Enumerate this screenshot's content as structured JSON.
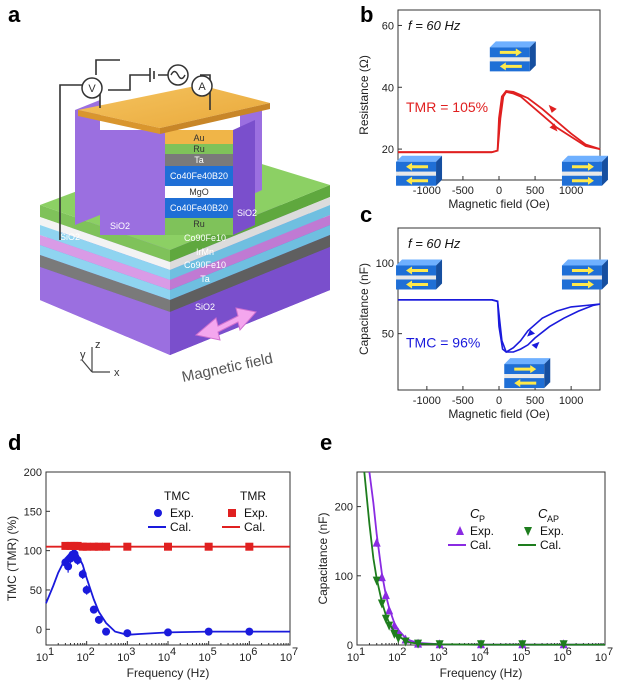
{
  "panel_labels": {
    "a": "a",
    "b": "b",
    "c": "c",
    "d": "d",
    "e": "e"
  },
  "device": {
    "layers": [
      "Au",
      "Ru",
      "Ta",
      "Co40Fe40B20",
      "MgO",
      "Co40Fe40B20",
      "Ru",
      "Co90Fe10",
      "IrMn",
      "Co90Fe10",
      "Ta",
      "SiO2"
    ],
    "side_labels": [
      "SiO2",
      "SiO2",
      "SiO2"
    ],
    "meters": [
      "V",
      "A"
    ],
    "axes": [
      "y",
      "z",
      "x"
    ],
    "field_label": "Magnetic field",
    "colors": {
      "purple": "#9b6fe0",
      "gold": "#f0b548",
      "green": "#7fc25a",
      "blue": "#1f6fd6",
      "cyan": "#8fd4f0",
      "gray": "#7a7a7a",
      "pink": "#d99be6"
    }
  },
  "chart_data": [
    {
      "id": "b",
      "type": "line",
      "freq_label": "f = 60 Hz",
      "annotation": "TMR = 105%",
      "xlabel": "Magnetic field (Oe)",
      "ylabel": "Resistance (Ω)",
      "xlim": [
        -1400,
        1400
      ],
      "ylim": [
        10,
        65
      ],
      "xticks": [
        -1000,
        -500,
        0,
        500,
        1000
      ],
      "xtick_labels": [
        "-1000",
        "-500",
        "0",
        "500",
        "1000"
      ],
      "yticks": [
        20,
        40,
        60
      ],
      "ytick_labels": [
        "20",
        "40",
        "60"
      ],
      "color": "#e02020",
      "series": [
        {
          "name": "up",
          "x": [
            -1400,
            -600,
            -100,
            -20,
            20,
            60,
            100,
            200,
            300,
            400,
            600,
            800,
            1000,
            1200,
            1400
          ],
          "y": [
            19,
            19,
            19,
            19.5,
            30,
            37,
            38.5,
            38,
            37,
            35,
            31,
            27,
            24,
            21,
            20
          ]
        },
        {
          "name": "down",
          "x": [
            1400,
            1200,
            1000,
            800,
            600,
            400,
            300,
            200,
            100,
            40,
            0,
            -20,
            -100,
            -600,
            -1400
          ],
          "y": [
            20,
            21.5,
            25,
            29,
            33,
            36.5,
            37.5,
            38.5,
            38.8,
            37,
            30,
            19.5,
            19,
            19,
            19
          ]
        }
      ]
    },
    {
      "id": "c",
      "type": "line",
      "freq_label": "f = 60 Hz",
      "annotation": "TMC = 96%",
      "xlabel": "Magnetic field (Oe)",
      "ylabel": "Capacitance (nF)",
      "xlim": [
        -1400,
        1400
      ],
      "ylim": [
        10,
        125
      ],
      "xticks": [
        -1000,
        -500,
        0,
        500,
        1000
      ],
      "xtick_labels": [
        "-1000",
        "-500",
        "0",
        "500",
        "1000"
      ],
      "yticks": [
        50,
        100
      ],
      "ytick_labels": [
        "50",
        "100"
      ],
      "color": "#1a1adc",
      "series": [
        {
          "name": "up",
          "x": [
            -1400,
            -600,
            -100,
            -20,
            40,
            100,
            200,
            300,
            400,
            500,
            700,
            900,
            1100,
            1300,
            1400
          ],
          "y": [
            74,
            74,
            74,
            73,
            45,
            37,
            37,
            39,
            42,
            47,
            55,
            61,
            66,
            70,
            71
          ]
        },
        {
          "name": "down",
          "x": [
            1400,
            1200,
            1000,
            800,
            600,
            400,
            300,
            200,
            100,
            50,
            0,
            -20,
            -100,
            -600,
            -1400
          ],
          "y": [
            71,
            70,
            69,
            66,
            61,
            52,
            45,
            40,
            37,
            39,
            55,
            73,
            74,
            74,
            74
          ]
        }
      ]
    },
    {
      "id": "d",
      "type": "line",
      "xlabel": "Frequency (Hz)",
      "ylabel": "TMC (TMR) (%)",
      "xscale": "log",
      "xlim": [
        10,
        10000000
      ],
      "ylim": [
        -20,
        200
      ],
      "xticks": [
        10,
        100,
        1000,
        10000,
        100000,
        1000000,
        10000000
      ],
      "xtick_base": "10",
      "xtick_exps": [
        "1",
        "2",
        "3",
        "4",
        "5",
        "6",
        "7"
      ],
      "yticks": [
        0,
        50,
        100,
        150,
        200
      ],
      "ytick_labels": [
        "0",
        "50",
        "100",
        "150",
        "200"
      ],
      "legend": {
        "tmc_title": "TMC",
        "tmr_title": "TMR",
        "exp": "Exp.",
        "cal": "Cal.",
        "tmc_color": "#1a1adc",
        "tmr_color": "#e02020"
      },
      "series": [
        {
          "name": "TMC Exp.",
          "marker": "circle",
          "color": "#1a1adc",
          "x": [
            30,
            35,
            40,
            45,
            50,
            60,
            80,
            100,
            150,
            200,
            300,
            1000,
            10000,
            100000,
            1000000
          ],
          "y": [
            85,
            80,
            90,
            95,
            96,
            88,
            70,
            50,
            25,
            12,
            -3,
            -5,
            -4,
            -3,
            -3
          ],
          "err": [
            6,
            8,
            6,
            6,
            6,
            6,
            6,
            6,
            5,
            5,
            3,
            2,
            2,
            2,
            2
          ]
        },
        {
          "name": "TMC Cal.",
          "line": true,
          "color": "#1a1adc",
          "x": [
            10,
            15,
            20,
            30,
            40,
            50,
            60,
            80,
            100,
            150,
            200,
            300,
            500,
            1000,
            2000,
            10000,
            100000,
            1000000,
            10000000
          ],
          "y": [
            33,
            55,
            72,
            90,
            97,
            98,
            95,
            82,
            65,
            38,
            22,
            8,
            -3,
            -7,
            -6,
            -4,
            -3,
            -3,
            -3
          ]
        },
        {
          "name": "TMR Exp.",
          "marker": "square",
          "color": "#e02020",
          "x": [
            30,
            40,
            50,
            60,
            80,
            100,
            150,
            200,
            300,
            1000,
            10000,
            100000,
            1000000
          ],
          "y": [
            106,
            106,
            106,
            106,
            105,
            105,
            105,
            105,
            105,
            105,
            105,
            105,
            105
          ]
        },
        {
          "name": "TMR Cal.",
          "line": true,
          "color": "#e02020",
          "x": [
            10,
            10000000
          ],
          "y": [
            105,
            105
          ]
        }
      ]
    },
    {
      "id": "e",
      "type": "line",
      "xlabel": "Frequency (Hz)",
      "ylabel": "Capacitance (nF)",
      "xscale": "log",
      "xlim": [
        10,
        10000000
      ],
      "ylim": [
        0,
        250
      ],
      "xticks": [
        10,
        100,
        1000,
        10000,
        100000,
        1000000,
        10000000
      ],
      "xtick_base": "10",
      "xtick_exps": [
        "1",
        "2",
        "3",
        "4",
        "5",
        "6",
        "7"
      ],
      "yticks": [
        0,
        100,
        200
      ],
      "ytick_labels": [
        "0",
        "100",
        "200"
      ],
      "legend": {
        "cp_title": "C",
        "cp_sub": "P",
        "cap_title": "C",
        "cap_sub": "AP",
        "exp": "Exp.",
        "cal": "Cal.",
        "cp_color": "#8a2be2",
        "cap_color": "#1e7d1e"
      },
      "series": [
        {
          "name": "CP Exp.",
          "marker": "triangle-up",
          "color": "#8a2be2",
          "x": [
            30,
            40,
            50,
            60,
            80,
            100,
            150,
            300,
            1000,
            10000,
            100000,
            1000000
          ],
          "y": [
            148,
            98,
            72,
            50,
            28,
            18,
            8,
            2,
            1,
            1,
            1,
            1
          ],
          "err": [
            6,
            6,
            5,
            4,
            3,
            2,
            1,
            1,
            1,
            1,
            1,
            1
          ]
        },
        {
          "name": "CP Cal.",
          "line": true,
          "color": "#8a2be2",
          "x": [
            20,
            25,
            30,
            40,
            50,
            60,
            80,
            100,
            150,
            200,
            300,
            1000,
            10000,
            10000000
          ],
          "y": [
            250,
            205,
            160,
            103,
            72,
            53,
            32,
            22,
            10,
            6,
            3,
            1,
            0.5,
            0.5
          ]
        },
        {
          "name": "CAP Exp.",
          "marker": "triangle-down",
          "color": "#1e7d1e",
          "x": [
            30,
            40,
            50,
            60,
            80,
            100,
            150,
            300,
            1000,
            10000,
            100000,
            1000000
          ],
          "y": [
            93,
            60,
            38,
            28,
            16,
            10,
            5,
            2,
            1,
            1,
            1,
            1
          ]
        },
        {
          "name": "CAP Cal.",
          "line": true,
          "color": "#1e7d1e",
          "x": [
            15,
            20,
            25,
            30,
            40,
            50,
            60,
            80,
            100,
            150,
            200,
            300,
            1000,
            10000,
            10000000
          ],
          "y": [
            250,
            175,
            125,
            96,
            62,
            43,
            32,
            19,
            13,
            6,
            3.5,
            2,
            1,
            0.5,
            0.5
          ]
        }
      ]
    }
  ]
}
